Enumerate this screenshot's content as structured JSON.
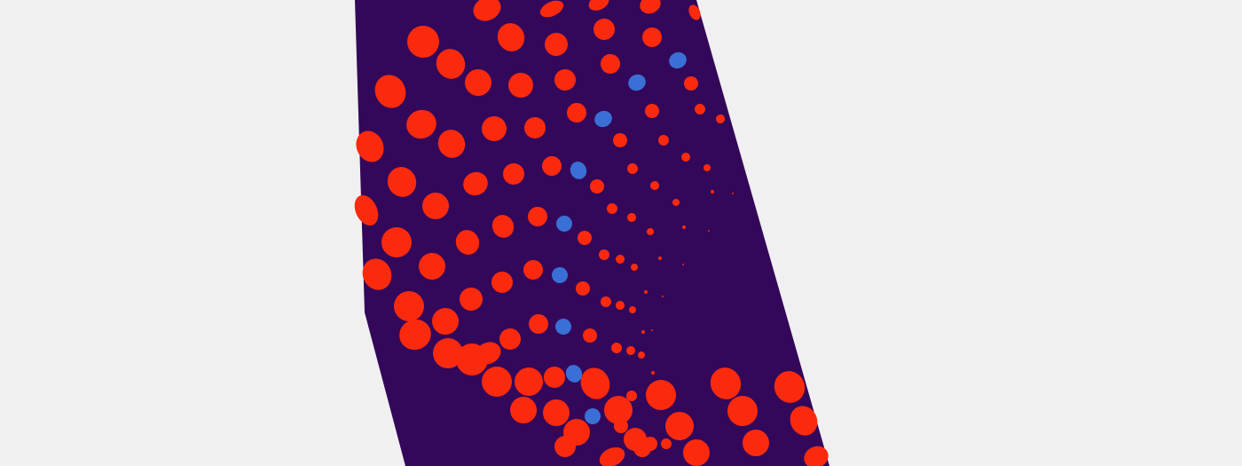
{
  "colors": {
    "background": "#f0f0f0",
    "panel": "#33085a",
    "dot_primary": "#fc2a0d",
    "dot_accent": "#3a70d6"
  }
}
